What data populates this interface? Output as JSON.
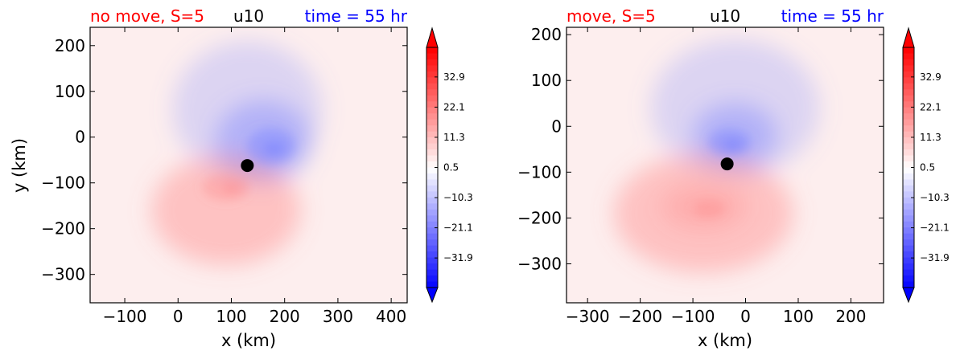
{
  "colors": {
    "title_left": "#ff0000",
    "title_center": "#000000",
    "title_right": "#0000ff",
    "center_marker": "#000000"
  },
  "chart_data": [
    {
      "type": "heatmap",
      "title_left": "no move, S=5",
      "title_center": "u10",
      "title_right": "time = 55 hr",
      "xlabel": "x (km)",
      "ylabel": "y (km)",
      "xlim": [
        -165,
        430
      ],
      "ylim": [
        -362,
        240
      ],
      "xticks": [
        -100,
        0,
        100,
        200,
        300,
        400
      ],
      "yticks": [
        200,
        100,
        0,
        -100,
        -200,
        -300
      ],
      "center": [
        130,
        -62
      ],
      "colorbar": {
        "min": -42.5,
        "max": 43.5,
        "extend": "both",
        "ticks": [
          "32.9",
          "22.1",
          "11.3",
          "0.5",
          "−10.3",
          "−21.1",
          "−31.9"
        ],
        "tick_values": [
          32.9,
          22.1,
          11.3,
          0.5,
          -10.3,
          -21.1,
          -31.9
        ]
      },
      "features": [
        {
          "type": "blue",
          "x": 130,
          "y": 60,
          "rx": 140,
          "ry": 150,
          "v": -6
        },
        {
          "type": "blue",
          "x": 160,
          "y": -10,
          "rx": 90,
          "ry": 90,
          "v": -10
        },
        {
          "type": "blue",
          "x": 175,
          "y": -20,
          "rx": 45,
          "ry": 40,
          "v": -10
        },
        {
          "type": "blue",
          "x": 180,
          "y": -25,
          "rx": 20,
          "ry": 15,
          "v": -12
        },
        {
          "type": "red",
          "x": 90,
          "y": -160,
          "rx": 140,
          "ry": 120,
          "v": 9
        },
        {
          "type": "red",
          "x": 90,
          "y": -110,
          "rx": 45,
          "ry": 30,
          "v": 6
        },
        {
          "type": "red",
          "x": 100,
          "y": -112,
          "rx": 18,
          "ry": 12,
          "v": 6
        }
      ]
    },
    {
      "type": "heatmap",
      "title_left": "move, S=5",
      "title_center": "u10",
      "title_right": "time = 55 hr",
      "xlabel": "x (km)",
      "ylabel": "",
      "xlim": [
        -340,
        262
      ],
      "ylim": [
        -385,
        216
      ],
      "xticks": [
        -300,
        -200,
        -100,
        0,
        100,
        200
      ],
      "yticks": [
        200,
        100,
        0,
        -100,
        -200,
        -300
      ],
      "center": [
        -35,
        -82
      ],
      "colorbar": {
        "min": -42.5,
        "max": 43.5,
        "extend": "both",
        "ticks": [
          "32.9",
          "22.1",
          "11.3",
          "0.5",
          "−10.3",
          "−21.1",
          "−31.9"
        ],
        "tick_values": [
          32.9,
          22.1,
          11.3,
          0.5,
          -10.3,
          -21.1,
          -31.9
        ]
      },
      "features": [
        {
          "type": "blue",
          "x": -20,
          "y": 40,
          "rx": 160,
          "ry": 150,
          "v": -6
        },
        {
          "type": "blue",
          "x": -20,
          "y": -20,
          "rx": 80,
          "ry": 70,
          "v": -10
        },
        {
          "type": "blue",
          "x": -30,
          "y": -35,
          "rx": 40,
          "ry": 30,
          "v": -10
        },
        {
          "type": "blue",
          "x": -25,
          "y": -40,
          "rx": 18,
          "ry": 12,
          "v": -12
        },
        {
          "type": "red",
          "x": -80,
          "y": -190,
          "rx": 170,
          "ry": 130,
          "v": 9
        },
        {
          "type": "red",
          "x": -80,
          "y": -175,
          "rx": 80,
          "ry": 50,
          "v": 6
        },
        {
          "type": "red",
          "x": -70,
          "y": -180,
          "rx": 30,
          "ry": 20,
          "v": 6
        }
      ]
    }
  ]
}
